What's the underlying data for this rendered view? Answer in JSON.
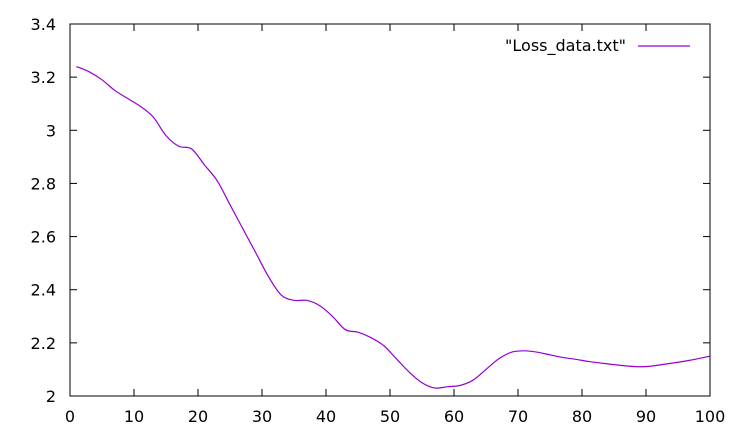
{
  "chart_data": {
    "type": "line",
    "title": "",
    "xlabel": "",
    "ylabel": "",
    "xlim": [
      0,
      100
    ],
    "ylim": [
      2,
      3.4
    ],
    "x_ticks": [
      "0",
      "10",
      "20",
      "30",
      "40",
      "50",
      "60",
      "70",
      "80",
      "90",
      "100"
    ],
    "y_ticks": [
      "2",
      "2.2",
      "2.4",
      "2.6",
      "2.8",
      "3",
      "3.2",
      "3.4"
    ],
    "x_tick_values": [
      0,
      10,
      20,
      30,
      40,
      50,
      60,
      70,
      80,
      90,
      100
    ],
    "y_tick_values": [
      2,
      2.2,
      2.4,
      2.6,
      2.8,
      3,
      3.2,
      3.4
    ],
    "grid": false,
    "legend_position": "top-right",
    "series": [
      {
        "name": "\"Loss_data.txt\"",
        "color": "#9400d3",
        "x": [
          1,
          3,
          5,
          7,
          9,
          11,
          13,
          15,
          17,
          19,
          21,
          23,
          25,
          27,
          29,
          31,
          33,
          35,
          37,
          39,
          41,
          43,
          45,
          47,
          49,
          51,
          53,
          55,
          57,
          59,
          61,
          63,
          65,
          67,
          69,
          71,
          73,
          75,
          77,
          79,
          81,
          83,
          85,
          87,
          89,
          91,
          93,
          95,
          97,
          100
        ],
        "values": [
          3.24,
          3.22,
          3.19,
          3.15,
          3.12,
          3.09,
          3.05,
          2.98,
          2.94,
          2.93,
          2.87,
          2.81,
          2.72,
          2.63,
          2.54,
          2.45,
          2.38,
          2.36,
          2.36,
          2.34,
          2.3,
          2.25,
          2.24,
          2.22,
          2.19,
          2.14,
          2.09,
          2.05,
          2.03,
          2.035,
          2.04,
          2.06,
          2.1,
          2.14,
          2.165,
          2.17,
          2.165,
          2.155,
          2.145,
          2.138,
          2.13,
          2.124,
          2.118,
          2.113,
          2.11,
          2.113,
          2.12,
          2.127,
          2.135,
          2.15
        ]
      }
    ]
  }
}
